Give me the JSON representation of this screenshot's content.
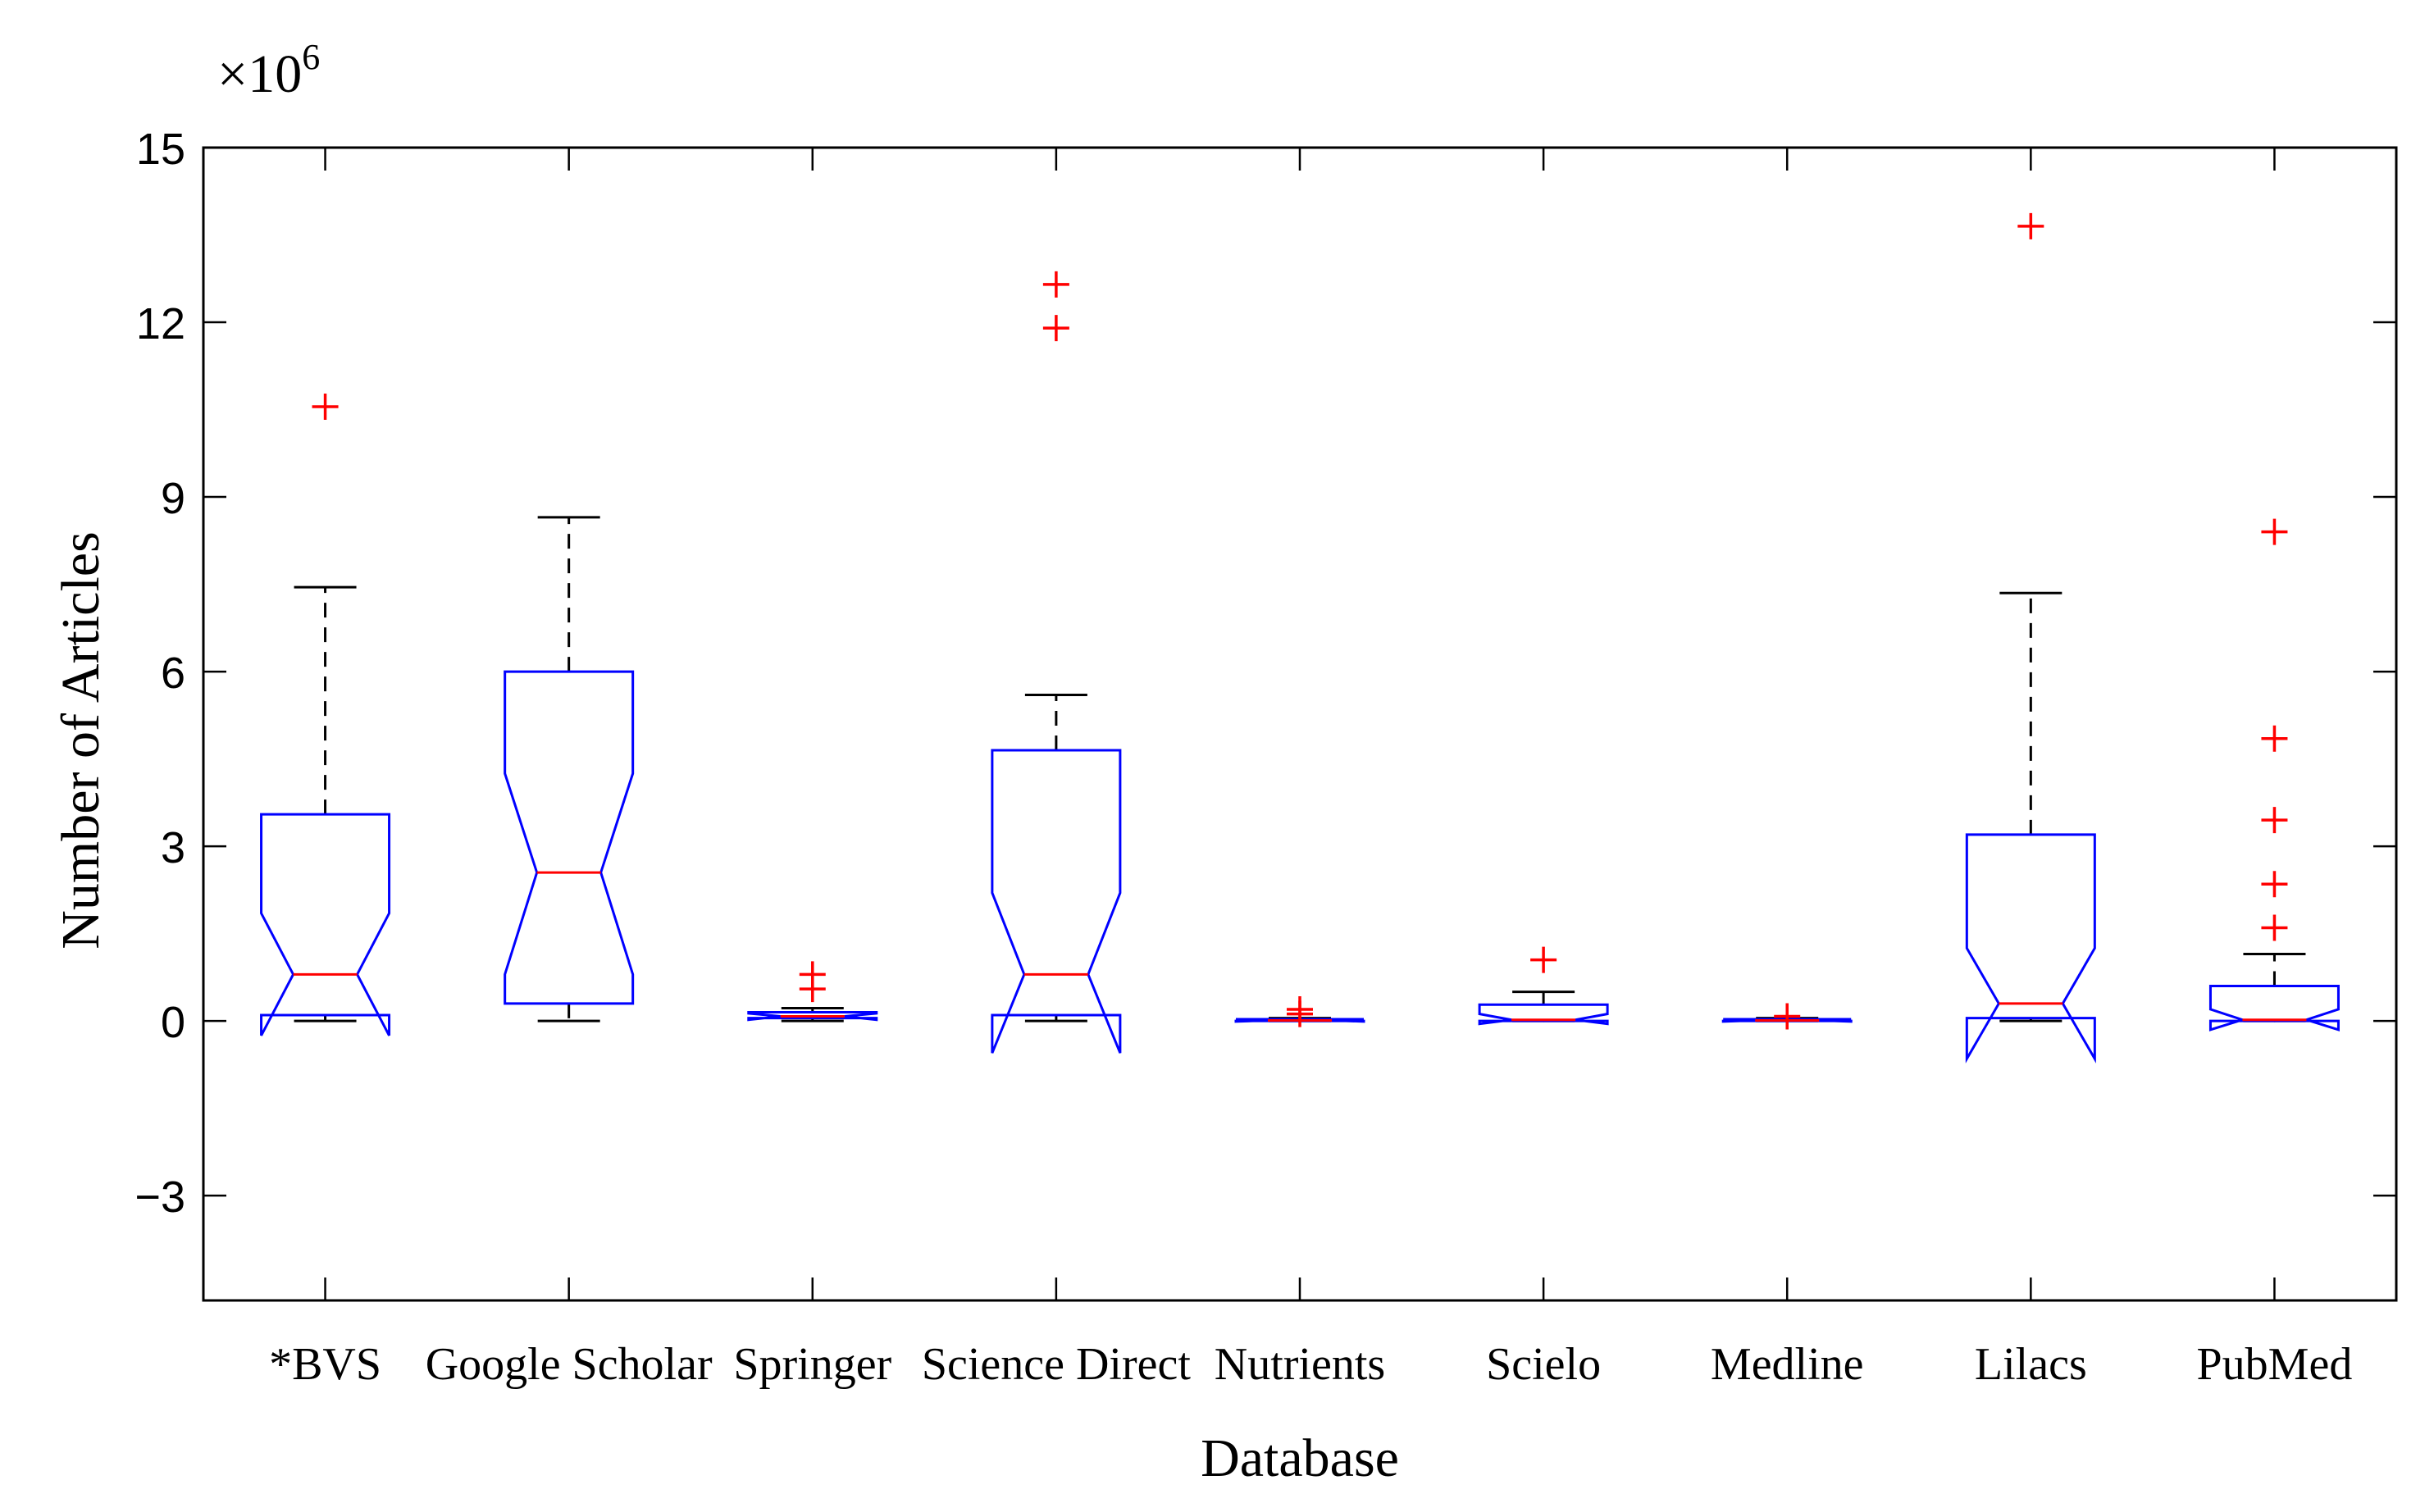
{
  "chart_data": {
    "type": "boxplot",
    "notched": true,
    "xlabel": "Database",
    "ylabel": "Number of Articles",
    "multiplier": {
      "base": "×10",
      "exponent": "6"
    },
    "ylim": [
      -4.8,
      15
    ],
    "yticks": [
      -3,
      0,
      3,
      6,
      9,
      12,
      15
    ],
    "ytick_labels": [
      "−3",
      "0",
      "3",
      "6",
      "9",
      "12",
      "15"
    ],
    "categories": [
      "*BVS",
      "Google Scholar",
      "Springer",
      "Science Direct",
      "Nutrients",
      "Scielo",
      "Medline",
      "Lilacs",
      "PubMed"
    ],
    "units": "millions",
    "colors": {
      "box": "#0000ff",
      "median": "#ff0000",
      "whisker": "#000000",
      "outlier": "#ff0000"
    },
    "boxes": [
      {
        "q1": 0.1,
        "median": 0.8,
        "q3": 3.55,
        "notch_low": -0.25,
        "notch_high": 1.85,
        "whisker_low": 0.0,
        "whisker_high": 7.45,
        "outliers": [
          10.55
        ]
      },
      {
        "q1": 0.3,
        "median": 2.55,
        "q3": 6.0,
        "notch_low": 0.8,
        "notch_high": 4.25,
        "whisker_low": 0.0,
        "whisker_high": 8.65,
        "outliers": []
      },
      {
        "q1": 0.05,
        "median": 0.08,
        "q3": 0.15,
        "notch_low": 0.02,
        "notch_high": 0.13,
        "whisker_low": 0.0,
        "whisker_high": 0.22,
        "outliers": [
          0.55,
          0.8
        ]
      },
      {
        "q1": 0.1,
        "median": 0.8,
        "q3": 4.65,
        "notch_low": -0.55,
        "notch_high": 2.2,
        "whisker_low": 0.0,
        "whisker_high": 5.6,
        "outliers": [
          11.9,
          12.65
        ]
      },
      {
        "q1": 0.0,
        "median": 0.01,
        "q3": 0.03,
        "notch_low": -0.01,
        "notch_high": 0.03,
        "whisker_low": 0.0,
        "whisker_high": 0.05,
        "outliers": [
          0.12,
          0.2
        ]
      },
      {
        "q1": 0.0,
        "median": 0.02,
        "q3": 0.28,
        "notch_low": -0.05,
        "notch_high": 0.12,
        "whisker_low": 0.0,
        "whisker_high": 0.5,
        "outliers": [
          1.05
        ]
      },
      {
        "q1": 0.0,
        "median": 0.01,
        "q3": 0.03,
        "notch_low": -0.01,
        "notch_high": 0.03,
        "whisker_low": 0.0,
        "whisker_high": 0.05,
        "outliers": [
          0.08
        ]
      },
      {
        "q1": 0.05,
        "median": 0.3,
        "q3": 3.2,
        "notch_low": -0.65,
        "notch_high": 1.25,
        "whisker_low": 0.0,
        "whisker_high": 7.35,
        "outliers": [
          13.65
        ]
      },
      {
        "q1": 0.0,
        "median": 0.02,
        "q3": 0.6,
        "notch_low": -0.15,
        "notch_high": 0.2,
        "whisker_low": 0.0,
        "whisker_high": 1.15,
        "outliers": [
          1.6,
          2.35,
          3.45,
          4.85,
          8.4
        ]
      }
    ]
  }
}
